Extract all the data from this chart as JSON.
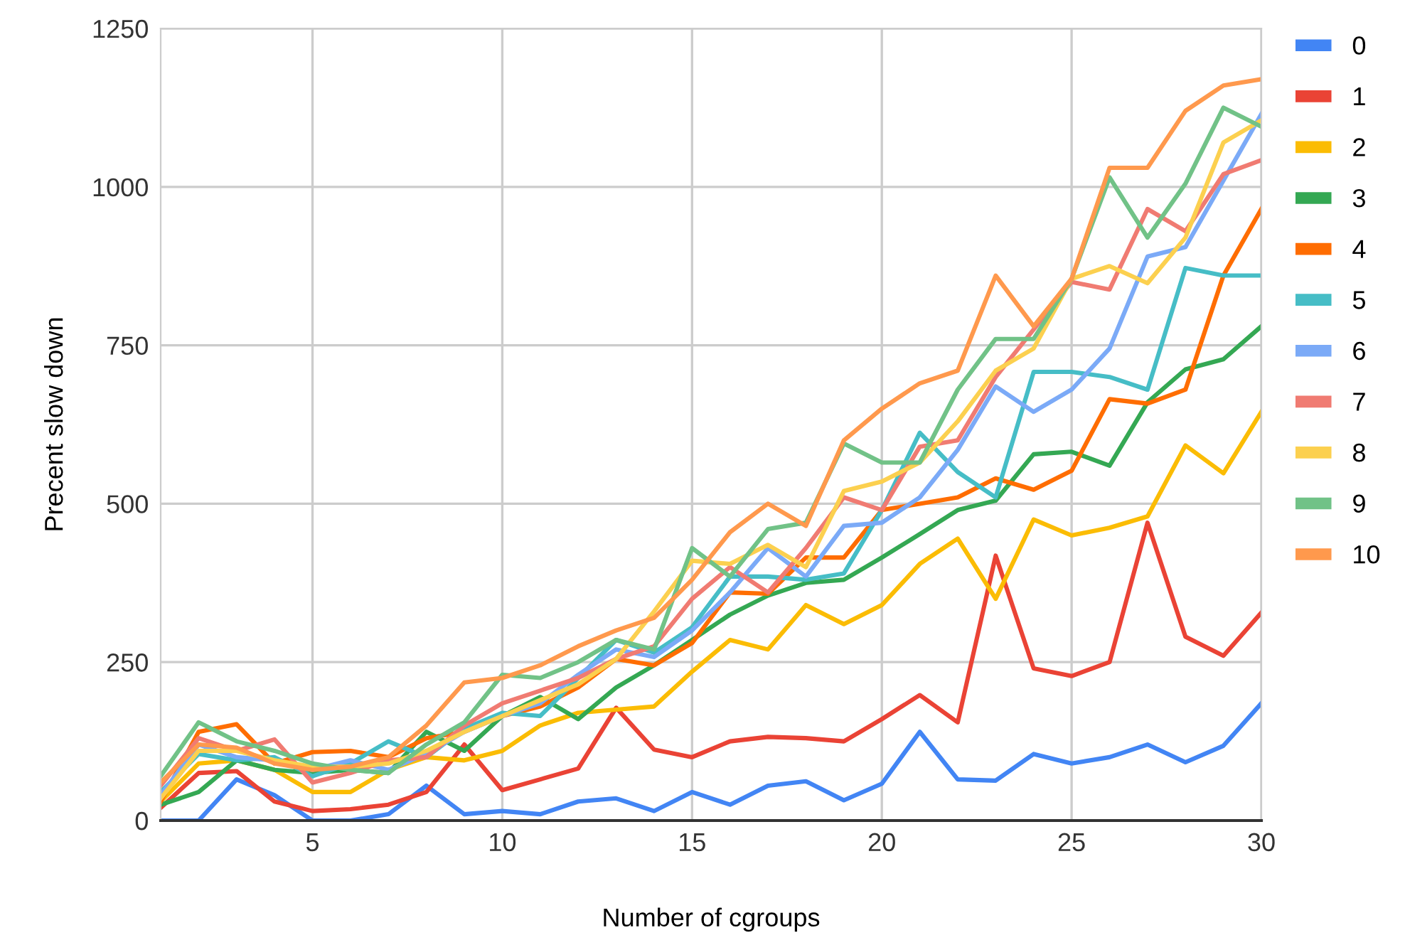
{
  "chart_data": {
    "type": "line",
    "xlabel": "Number of cgroups",
    "ylabel": "Precent slow down",
    "x": [
      1,
      2,
      3,
      4,
      5,
      6,
      7,
      8,
      9,
      10,
      11,
      12,
      13,
      14,
      15,
      16,
      17,
      18,
      19,
      20,
      21,
      22,
      23,
      24,
      25,
      26,
      27,
      28,
      29,
      30
    ],
    "xlim": [
      1,
      30
    ],
    "xticks": [
      5,
      10,
      15,
      20,
      25,
      30
    ],
    "ylim": [
      0,
      1250
    ],
    "yticks": [
      0,
      250,
      500,
      750,
      1000,
      1250
    ],
    "grid": true,
    "legend": "right",
    "marker": "none",
    "line_style": "solid",
    "series": [
      {
        "name": "0",
        "color": "#4285f4",
        "values": [
          0,
          0,
          65,
          40,
          0,
          0,
          10,
          55,
          10,
          15,
          10,
          30,
          35,
          15,
          45,
          25,
          55,
          62,
          32,
          58,
          140,
          65,
          63,
          105,
          90,
          100,
          120,
          92,
          118,
          185
        ]
      },
      {
        "name": "1",
        "color": "#ea4335",
        "values": [
          20,
          75,
          78,
          30,
          15,
          18,
          25,
          45,
          120,
          48,
          65,
          82,
          178,
          112,
          100,
          125,
          132,
          130,
          125,
          160,
          198,
          155,
          418,
          240,
          228,
          250,
          470,
          290,
          260,
          328
        ]
      },
      {
        "name": "2",
        "color": "#fbbc04",
        "values": [
          30,
          90,
          95,
          80,
          45,
          45,
          80,
          100,
          95,
          110,
          150,
          170,
          175,
          180,
          235,
          285,
          270,
          340,
          310,
          340,
          405,
          445,
          350,
          475,
          450,
          462,
          480,
          592,
          548,
          645
        ]
      },
      {
        "name": "3",
        "color": "#34a853",
        "values": [
          25,
          45,
          95,
          80,
          75,
          80,
          75,
          140,
          110,
          165,
          195,
          160,
          210,
          245,
          285,
          325,
          355,
          375,
          380,
          415,
          452,
          490,
          505,
          578,
          582,
          560,
          660,
          712,
          728,
          780
        ]
      },
      {
        "name": "4",
        "color": "#ff6d01",
        "values": [
          30,
          140,
          152,
          90,
          108,
          110,
          100,
          130,
          140,
          165,
          180,
          210,
          255,
          245,
          280,
          360,
          358,
          415,
          415,
          490,
          500,
          510,
          540,
          522,
          552,
          665,
          658,
          680,
          860,
          965
        ]
      },
      {
        "name": "5",
        "color": "#46bdc6",
        "values": [
          45,
          105,
          95,
          100,
          70,
          90,
          125,
          100,
          145,
          170,
          165,
          225,
          285,
          265,
          305,
          385,
          385,
          380,
          390,
          490,
          612,
          550,
          510,
          708,
          708,
          700,
          680,
          872,
          860,
          860
        ]
      },
      {
        "name": "6",
        "color": "#7baaf7",
        "values": [
          40,
          120,
          100,
          95,
          80,
          95,
          80,
          105,
          140,
          165,
          185,
          230,
          270,
          258,
          300,
          360,
          430,
          385,
          465,
          470,
          510,
          585,
          685,
          645,
          680,
          745,
          890,
          905,
          1010,
          1115
        ]
      },
      {
        "name": "7",
        "color": "#f07b72",
        "values": [
          55,
          130,
          110,
          128,
          60,
          75,
          95,
          100,
          150,
          185,
          205,
          225,
          255,
          275,
          350,
          400,
          360,
          430,
          510,
          490,
          590,
          600,
          700,
          775,
          850,
          838,
          965,
          930,
          1020,
          1042
        ]
      },
      {
        "name": "8",
        "color": "#fcd04f",
        "values": [
          35,
          110,
          110,
          95,
          85,
          85,
          90,
          110,
          140,
          165,
          190,
          215,
          255,
          330,
          410,
          405,
          435,
          400,
          520,
          535,
          565,
          630,
          710,
          745,
          855,
          875,
          848,
          920,
          1070,
          1105
        ]
      },
      {
        "name": "9",
        "color": "#71c287",
        "values": [
          70,
          155,
          125,
          110,
          90,
          80,
          75,
          120,
          155,
          230,
          225,
          250,
          285,
          270,
          430,
          385,
          460,
          470,
          595,
          565,
          565,
          680,
          760,
          760,
          855,
          1015,
          920,
          1005,
          1125,
          1095
        ]
      },
      {
        "name": "10",
        "color": "#ff994d",
        "values": [
          60,
          120,
          115,
          90,
          80,
          85,
          100,
          150,
          218,
          225,
          245,
          275,
          300,
          320,
          380,
          455,
          500,
          465,
          600,
          650,
          690,
          710,
          860,
          780,
          855,
          1030,
          1030,
          1120,
          1160,
          1170
        ]
      }
    ]
  }
}
